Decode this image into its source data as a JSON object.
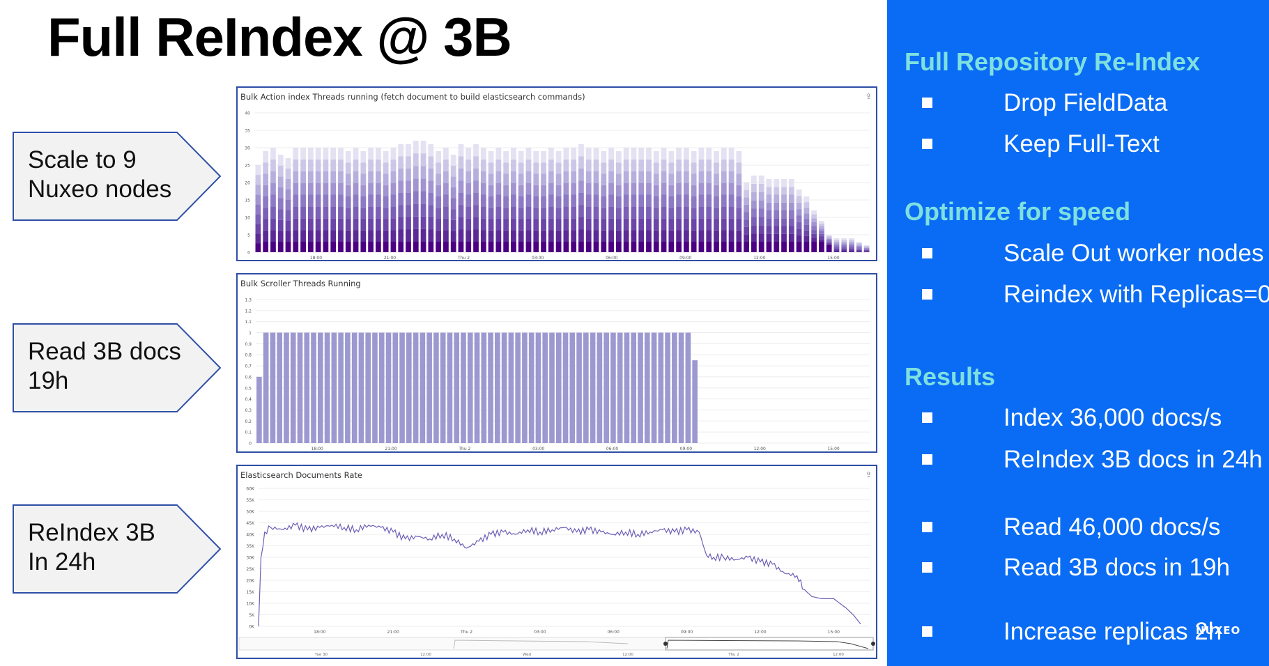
{
  "slide": {
    "title": "Full ReIndex @ 3B"
  },
  "callouts": [
    {
      "line1": "Scale to 9",
      "line2": "Nuxeo nodes"
    },
    {
      "line1": "Read 3B docs",
      "line2": "19h"
    },
    {
      "line1": "ReIndex 3B",
      "line2": "In 24h"
    }
  ],
  "chart_data": [
    {
      "type": "bar",
      "stacked": true,
      "title": "Bulk Action index Threads running (fetch document to build elasticsearch commands)",
      "xlabel": "",
      "ylabel": "",
      "ylim": [
        0,
        40
      ],
      "y_ticks": [
        "0",
        "5",
        "10",
        "15",
        "20",
        "25",
        "30",
        "35",
        "40"
      ],
      "x_ticks": [
        "18:00",
        "21:00",
        "Thu 2",
        "03:00",
        "06:00",
        "09:00",
        "12:00",
        "15:00"
      ],
      "x_tick_positions": [
        2.5,
        5.5,
        8.5,
        11.5,
        14.5,
        17.5,
        20.5,
        23.5
      ],
      "x_range": [
        0,
        25
      ],
      "num_series": 9,
      "series_colors": [
        "#4b0082",
        "#5b2a96",
        "#6b46a8",
        "#7c60b7",
        "#8e79c5",
        "#a194d1",
        "#b6aedd",
        "#ccc7e7",
        "#e4e1f2"
      ],
      "totals": [
        25,
        29,
        30,
        28,
        27,
        30,
        30,
        30,
        30,
        30,
        30,
        30,
        29,
        30,
        29,
        30,
        30,
        29,
        30,
        31,
        31,
        32,
        32,
        31,
        29,
        30,
        28,
        31,
        30,
        31,
        30,
        29,
        30,
        29,
        30,
        29,
        30,
        29,
        29,
        30,
        29,
        30,
        30,
        31,
        30,
        30,
        29,
        30,
        29,
        30,
        30,
        30,
        30,
        29,
        30,
        29,
        30,
        30,
        29,
        30,
        30,
        29,
        30,
        30,
        29,
        20,
        22,
        22,
        21,
        21,
        21,
        21,
        18,
        16,
        12,
        9,
        5,
        4,
        4,
        4,
        3,
        2
      ],
      "dark": [
        2.5,
        3,
        3,
        3,
        3,
        3,
        3,
        3,
        3,
        3,
        3,
        3,
        3,
        3,
        3,
        3,
        3,
        3,
        3,
        3,
        3,
        3,
        3,
        3,
        3,
        3,
        3,
        3,
        3,
        3,
        3,
        3,
        3,
        3,
        3,
        3,
        3,
        3,
        3,
        3,
        3,
        3,
        3,
        3,
        3,
        3,
        3,
        3,
        3,
        3,
        3,
        3,
        3,
        3,
        3,
        3,
        3,
        3,
        3,
        3,
        3,
        3,
        3,
        3,
        3,
        3,
        3,
        3,
        3,
        3,
        3,
        3,
        3,
        3,
        3,
        3,
        2,
        0,
        0,
        0,
        0,
        0
      ]
    },
    {
      "type": "bar",
      "title": "Bulk Scroller Threads Running",
      "xlabel": "",
      "ylabel": "",
      "ylim": [
        0,
        1.3
      ],
      "y_ticks": [
        "0",
        "0.1",
        "0.2",
        "0.3",
        "0.4",
        "0.5",
        "0.6",
        "0.7",
        "0.8",
        "0.9",
        "1",
        "1.1",
        "1.2",
        "1.3"
      ],
      "x_ticks": [
        "18:00",
        "21:00",
        "Thu 2",
        "03:00",
        "06:00",
        "09:00",
        "12:00",
        "15:00"
      ],
      "x_tick_positions": [
        2.5,
        5.5,
        8.5,
        11.5,
        14.5,
        17.5,
        20.5,
        23.5
      ],
      "x_range": [
        0,
        25
      ],
      "color": "#9c98d0",
      "values": [
        0.6,
        1,
        1,
        1,
        1,
        1,
        1,
        1,
        1,
        1,
        1,
        1,
        1,
        1,
        1,
        1,
        1,
        1,
        1,
        1,
        1,
        1,
        1,
        1,
        1,
        1,
        1,
        1,
        1,
        1,
        1,
        1,
        1,
        1,
        1,
        1,
        1,
        1,
        1,
        1,
        1,
        1,
        1,
        1,
        1,
        1,
        1,
        1,
        1,
        1,
        1,
        1,
        1,
        1,
        1,
        1,
        1,
        1,
        1,
        1,
        1,
        1,
        1,
        1,
        0.75
      ]
    },
    {
      "type": "line",
      "title": "Elasticsearch Documents Rate",
      "xlabel": "",
      "ylabel": "",
      "ylim": [
        0,
        60000
      ],
      "y_ticks": [
        "0K",
        "5K",
        "10K",
        "15K",
        "20K",
        "25K",
        "30K",
        "35K",
        "40K",
        "45K",
        "50K",
        "55K",
        "60K"
      ],
      "x_ticks": [
        "18:00",
        "21:00",
        "Thu 2",
        "03:00",
        "06:00",
        "09:00",
        "12:00",
        "15:00"
      ],
      "x_tick_positions": [
        2.5,
        5.5,
        8.5,
        11.5,
        14.5,
        17.5,
        20.5,
        23.5
      ],
      "x_range": [
        0,
        25
      ],
      "color": "#6c5fb5",
      "x": [
        0,
        0.1,
        0.25,
        0.5,
        1,
        1.5,
        2,
        2.5,
        3,
        3.5,
        4,
        4.5,
        5,
        5.5,
        6,
        6.5,
        7,
        7.5,
        8,
        8.5,
        9,
        9.5,
        10,
        10.5,
        11,
        11.5,
        12,
        12.5,
        13,
        13.5,
        14,
        14.5,
        15,
        15.5,
        16,
        16.5,
        17,
        17.5,
        18,
        18.3,
        18.6,
        19,
        19.5,
        20,
        20.5,
        21,
        21.5,
        22,
        22.3,
        22.6,
        23,
        23.5,
        24,
        24.3,
        24.6
      ],
      "y": [
        0,
        30000,
        41000,
        43000,
        42000,
        44000,
        42000,
        43000,
        44000,
        43000,
        42000,
        44000,
        43000,
        41000,
        38000,
        39000,
        38000,
        40000,
        38000,
        34000,
        37000,
        40000,
        41000,
        40000,
        42000,
        41000,
        42000,
        43000,
        41000,
        42000,
        41000,
        40000,
        41000,
        40000,
        41000,
        42000,
        41000,
        42000,
        41000,
        31000,
        30000,
        30000,
        29000,
        30000,
        28000,
        27000,
        23000,
        22000,
        16000,
        13000,
        12000,
        12000,
        8000,
        5000,
        1000
      ]
    }
  ],
  "overview_axis": [
    "Tue 30",
    "12:00",
    "Wed",
    "12:00",
    "Thu 2",
    "12:00"
  ],
  "sidebar": {
    "sections": [
      {
        "heading": "Full Repository Re-Index",
        "items": [
          "Drop FieldData",
          "Keep Full-Text"
        ]
      },
      {
        "heading": "Optimize for speed",
        "items": [
          "Scale Out worker nodes",
          "Reindex with Replicas=0"
        ]
      },
      {
        "heading": "Results",
        "items": [
          "Index 36,000 docs/s",
          "ReIndex 3B docs in 24h",
          "Read 46,000 docs/s",
          "Read 3B docs in 19h",
          "Increase replicas 2h"
        ]
      }
    ],
    "brand": "NUXEO",
    "color": "#0a6cf4",
    "heading_color": "#7fe0df"
  }
}
